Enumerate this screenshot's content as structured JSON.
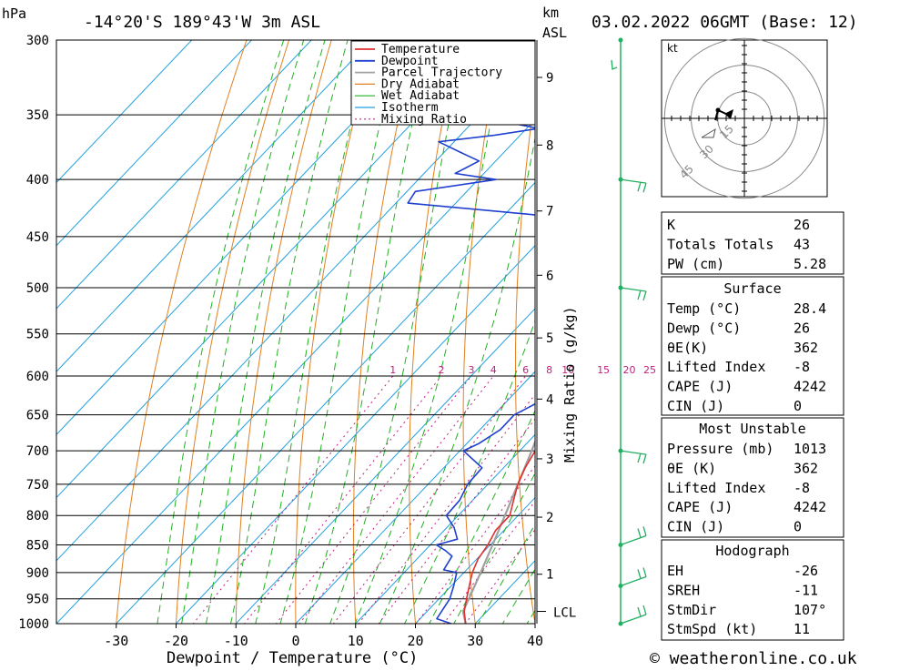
{
  "header": {
    "pressure_unit": "hPa",
    "location": "-14°20'S  189°43'W  3m  ASL",
    "height_unit": "km",
    "height_unit2": "ASL",
    "datetime": "03.02.2022  06GMT  (Base: 12)"
  },
  "footer": {
    "credit": "© weatheronline.co.uk"
  },
  "chart_data": {
    "type": "line",
    "subtype": "skew-T log-P diagram",
    "xlabel": "Dewpoint / Temperature (°C)",
    "ylabel": "hPa",
    "xlim": [
      -40,
      40
    ],
    "ylim": [
      1000,
      300
    ],
    "x_ticks": [
      -30,
      -20,
      -10,
      0,
      10,
      20,
      30,
      40
    ],
    "pressure_ticks": [
      300,
      350,
      400,
      450,
      500,
      550,
      600,
      650,
      700,
      750,
      800,
      850,
      900,
      950,
      1000
    ],
    "height_ticks_km": [
      1,
      2,
      3,
      4,
      5,
      6,
      7,
      8,
      9
    ],
    "height_label": "LCL",
    "lcl_pressure": 975,
    "mixing_ratio_axis_label": "Mixing Ratio (g/kg)",
    "mixing_ratio_values": [
      1,
      2,
      3,
      4,
      6,
      8,
      10,
      15,
      20,
      25
    ],
    "legend": [
      "Temperature",
      "Dewpoint",
      "Parcel Trajectory",
      "Dry Adiabat",
      "Wet Adiabat",
      "Isotherm",
      "Mixing Ratio"
    ],
    "colors": {
      "temperature": "#e03030",
      "dewpoint": "#2040d0",
      "parcel": "#a0a0a0",
      "dry_adiabat": "#e08020",
      "wet_adiabat": "#20b020",
      "isotherm": "#20a0e0",
      "mixing_ratio": "#c02080"
    },
    "temperature": {
      "name": "Temperature",
      "points": [
        [
          1000,
          28.4
        ],
        [
          975,
          26.2
        ],
        [
          950,
          24.6
        ],
        [
          925,
          23.0
        ],
        [
          900,
          21.4
        ],
        [
          875,
          20.2
        ],
        [
          850,
          19.6
        ],
        [
          825,
          18.6
        ],
        [
          800,
          18.6
        ],
        [
          775,
          16.8
        ],
        [
          750,
          15.0
        ],
        [
          725,
          13.6
        ],
        [
          700,
          12.6
        ],
        [
          680,
          10.6
        ],
        [
          650,
          8.0
        ],
        [
          625,
          6.8
        ],
        [
          600,
          5.6
        ],
        [
          575,
          3.4
        ],
        [
          550,
          1.4
        ],
        [
          525,
          -1.2
        ],
        [
          500,
          -3.4
        ],
        [
          475,
          -6.2
        ],
        [
          450,
          -9.0
        ],
        [
          430,
          -11.4
        ],
        [
          425,
          -10.2
        ],
        [
          410,
          -11.6
        ],
        [
          400,
          -14.0
        ],
        [
          380,
          -17.2
        ],
        [
          360,
          -21.4
        ],
        [
          350,
          -23.4
        ],
        [
          330,
          -28.4
        ],
        [
          310,
          -34.2
        ],
        [
          300,
          -37.0
        ]
      ]
    },
    "dewpoint": {
      "name": "Dewpoint",
      "points": [
        [
          1000,
          26.0
        ],
        [
          990,
          22.8
        ],
        [
          950,
          21.8
        ],
        [
          925,
          20.4
        ],
        [
          900,
          18.8
        ],
        [
          895,
          16.2
        ],
        [
          870,
          15.4
        ],
        [
          860,
          13.4
        ],
        [
          850,
          11.0
        ],
        [
          840,
          13.6
        ],
        [
          820,
          11.2
        ],
        [
          800,
          8.0
        ],
        [
          775,
          7.8
        ],
        [
          750,
          6.6
        ],
        [
          725,
          6.4
        ],
        [
          700,
          0.6
        ],
        [
          690,
          2.0
        ],
        [
          670,
          3.4
        ],
        [
          650,
          3.4
        ],
        [
          640,
          4.6
        ],
        [
          625,
          6.4
        ],
        [
          600,
          4.6
        ],
        [
          575,
          2.4
        ],
        [
          550,
          0.2
        ],
        [
          525,
          -3.4
        ],
        [
          500,
          -7.6
        ],
        [
          475,
          -9.6
        ],
        [
          450,
          -14.4
        ],
        [
          440,
          -17.0
        ],
        [
          435,
          -18.4
        ],
        [
          430,
          -25.4
        ],
        [
          420,
          -48.0
        ],
        [
          410,
          -48.6
        ],
        [
          400,
          -37.0
        ],
        [
          395,
          -44.8
        ],
        [
          385,
          -42.8
        ],
        [
          378,
          -47.4
        ],
        [
          370,
          -52.6
        ],
        [
          365,
          -44.2
        ],
        [
          360,
          -38.0
        ],
        [
          355,
          -44.8
        ],
        [
          350,
          -55.8
        ],
        [
          340,
          -59.6
        ],
        [
          325,
          -56.6
        ],
        [
          310,
          -48.8
        ],
        [
          300,
          -50.8
        ]
      ]
    },
    "parcel": {
      "name": "Parcel Trajectory",
      "points": [
        [
          1000,
          28.4
        ],
        [
          975,
          26.0
        ],
        [
          950,
          25.0
        ],
        [
          900,
          22.8
        ],
        [
          850,
          20.4
        ],
        [
          800,
          17.8
        ],
        [
          750,
          15.0
        ],
        [
          700,
          12.0
        ],
        [
          650,
          8.6
        ],
        [
          600,
          4.8
        ],
        [
          550,
          0.8
        ],
        [
          500,
          -3.8
        ],
        [
          450,
          -8.8
        ],
        [
          400,
          -14.6
        ],
        [
          350,
          -21.4
        ],
        [
          300,
          -29.8
        ]
      ]
    },
    "hodograph": {
      "unit_label": "kt",
      "ring_labels": [
        "15",
        "30",
        "45"
      ]
    },
    "wind_barbs_pressure": [
      300,
      400,
      500,
      700,
      850,
      925,
      1000
    ]
  },
  "indices": {
    "top": [
      {
        "label": "K",
        "value": "26"
      },
      {
        "label": "Totals Totals",
        "value": "43"
      },
      {
        "label": "PW (cm)",
        "value": "5.28"
      }
    ],
    "surface": {
      "title": "Surface",
      "rows": [
        {
          "label": "Temp (°C)",
          "value": "28.4"
        },
        {
          "label": "Dewp (°C)",
          "value": "26"
        },
        {
          "label": "θE(K)",
          "value": "362"
        },
        {
          "label": "Lifted Index",
          "value": "-8"
        },
        {
          "label": "CAPE (J)",
          "value": "4242"
        },
        {
          "label": "CIN (J)",
          "value": "0"
        }
      ]
    },
    "most_unstable": {
      "title": "Most Unstable",
      "rows": [
        {
          "label": "Pressure (mb)",
          "value": "1013"
        },
        {
          "label": "θE (K)",
          "value": "362"
        },
        {
          "label": "Lifted Index",
          "value": "-8"
        },
        {
          "label": "CAPE (J)",
          "value": "4242"
        },
        {
          "label": "CIN (J)",
          "value": "0"
        }
      ]
    },
    "hodograph": {
      "title": "Hodograph",
      "rows": [
        {
          "label": "EH",
          "value": "-26"
        },
        {
          "label": "SREH",
          "value": "-11"
        },
        {
          "label": "StmDir",
          "value": "107°"
        },
        {
          "label": "StmSpd (kt)",
          "value": "11"
        }
      ]
    }
  }
}
